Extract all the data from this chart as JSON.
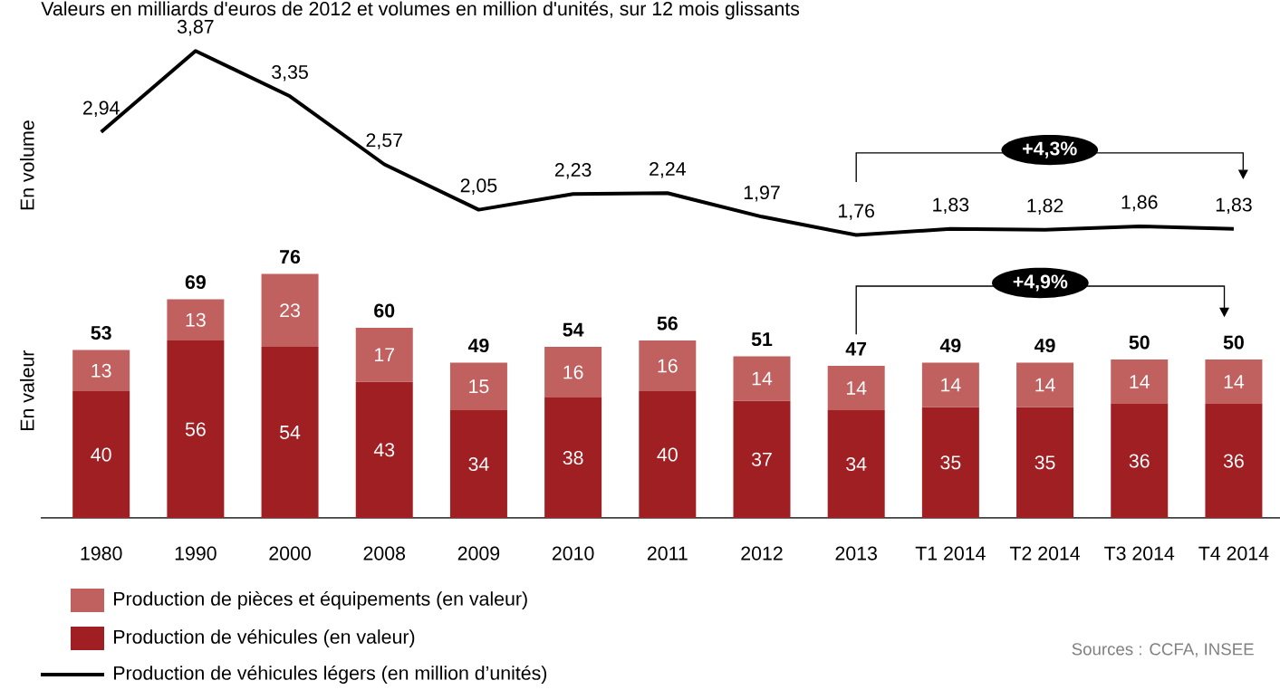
{
  "chart_data": [
    {
      "type": "line",
      "title": "Valeurs en milliards d'euros de 2012 et volumes en million d'unités, sur 12 mois glissants",
      "ylabel": "En volume",
      "categories": [
        null,
        null,
        null,
        null,
        null,
        null,
        null,
        null,
        null,
        null,
        null,
        null,
        null
      ],
      "series": [
        {
          "name": "Production de véhicules légers (en million d’unités)",
          "color": "#000000",
          "values": [
            2.94,
            3.87,
            3.35,
            2.57,
            2.05,
            2.23,
            2.24,
            1.97,
            1.76,
            1.83,
            1.82,
            1.86,
            1.83
          ],
          "value_labels": [
            "2,94",
            "3,87",
            "3,35",
            "2,57",
            "2,05",
            "2,23",
            "2,24",
            "1,97",
            "1,76",
            "1,83",
            "1,82",
            "1,86",
            "1,83"
          ]
        }
      ],
      "tick_labels": false,
      "legend": "bottom",
      "annotations": [
        "+4,3%"
      ]
    },
    {
      "type": "bar",
      "stacked": true,
      "ylabel": "En valeur",
      "categories": [
        "1980",
        "1990",
        "2000",
        "2008",
        "2009",
        "2010",
        "2011",
        "2012",
        "2013",
        "T1 2014",
        "T2 2014",
        "T3 2014",
        "T4 2014"
      ],
      "series": [
        {
          "name": "Production de véhicules (en valeur)",
          "color": "#a01f22",
          "values": [
            40,
            56,
            54,
            43,
            34,
            38,
            40,
            37,
            34,
            35,
            35,
            36,
            36
          ]
        },
        {
          "name": "Production de pièces et équipements (en valeur)",
          "color": "#c0605f",
          "values": [
            13,
            13,
            23,
            17,
            15,
            16,
            16,
            14,
            14,
            14,
            14,
            14,
            14
          ]
        }
      ],
      "data_labels": true,
      "totals": [
        "53",
        "69",
        "76",
        "60",
        "49",
        "54",
        "56",
        "51",
        "47",
        "49",
        "49",
        "50",
        "50"
      ],
      "tick_labels": "x",
      "legend": "bottom",
      "annotations": [
        "+4,9%",
        "Sources : CCFA, INSEE"
      ]
    }
  ]
}
